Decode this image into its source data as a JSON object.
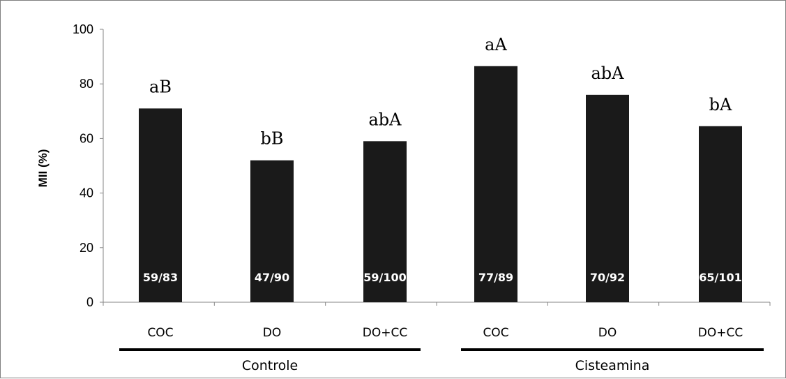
{
  "chart_data": {
    "type": "bar",
    "ylabel": "MII (%)",
    "ylim": [
      0,
      100
    ],
    "yticks": [
      0,
      20,
      40,
      60,
      80,
      100
    ],
    "categories": [
      "COC",
      "DO",
      "DO+CC",
      "COC",
      "DO",
      "DO+CC"
    ],
    "values": [
      71,
      52,
      59,
      86.5,
      76,
      64.5
    ],
    "significance_labels": [
      "aB",
      "bB",
      "abA",
      "aA",
      "abA",
      "bA"
    ],
    "count_labels": [
      "59/83",
      "47/90",
      "59/100",
      "77/89",
      "70/92",
      "65/101"
    ],
    "groups": [
      {
        "label": "Controle",
        "category_indices": [
          0,
          1,
          2
        ]
      },
      {
        "label": "Cisteamina",
        "category_indices": [
          3,
          4,
          5
        ]
      }
    ],
    "bar_color": "#1a1a1a",
    "grid": false,
    "legend": "none"
  }
}
